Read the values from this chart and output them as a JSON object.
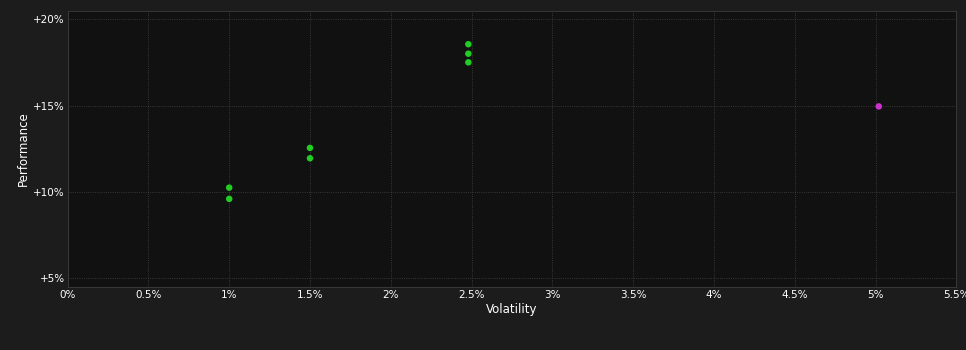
{
  "background_color": "#1c1c1c",
  "plot_bg_color": "#111111",
  "grid_color": "#444444",
  "text_color": "#ffffff",
  "xlabel": "Volatility",
  "ylabel": "Performance",
  "xlim": [
    0.0,
    0.055
  ],
  "ylim": [
    0.045,
    0.205
  ],
  "xticks": [
    0.0,
    0.005,
    0.01,
    0.015,
    0.02,
    0.025,
    0.03,
    0.035,
    0.04,
    0.045,
    0.05,
    0.055
  ],
  "yticks": [
    0.05,
    0.1,
    0.15,
    0.2
  ],
  "ytick_labels": [
    "+5%",
    "+10%",
    "+15%",
    "+20%"
  ],
  "xtick_labels": [
    "0%",
    "0.5%",
    "1%",
    "1.5%",
    "2%",
    "2.5%",
    "3%",
    "3.5%",
    "4%",
    "4.5%",
    "5%",
    "5.5%"
  ],
  "green_points": [
    [
      0.01,
      0.1025
    ],
    [
      0.01,
      0.096
    ],
    [
      0.015,
      0.1255
    ],
    [
      0.015,
      0.1195
    ],
    [
      0.0248,
      0.1855
    ],
    [
      0.0248,
      0.18
    ],
    [
      0.0248,
      0.175
    ]
  ],
  "magenta_points": [
    [
      0.0502,
      0.1495
    ]
  ],
  "green_color": "#22cc22",
  "magenta_color": "#cc33cc",
  "marker_size": 22,
  "figsize": [
    9.66,
    3.5
  ],
  "dpi": 100
}
